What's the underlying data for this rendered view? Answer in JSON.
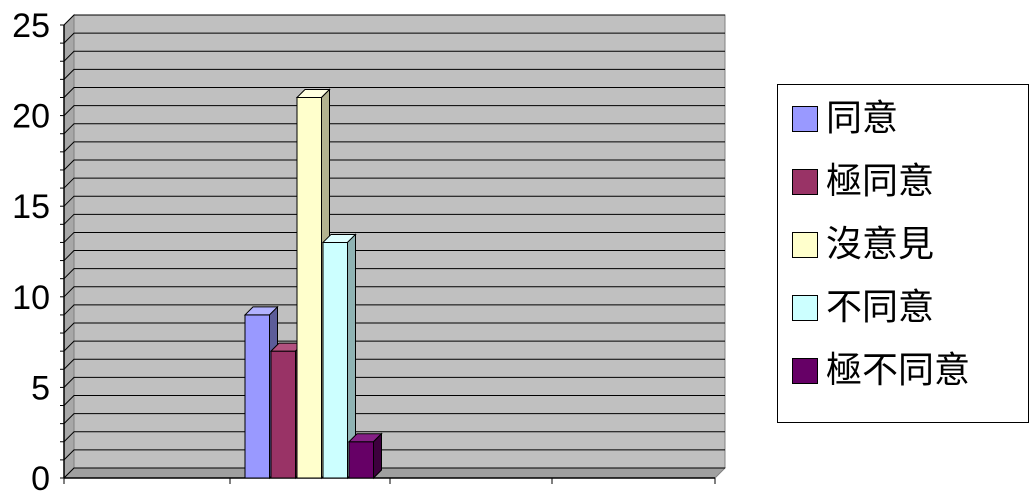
{
  "chart_data": {
    "type": "bar",
    "categories": [
      ""
    ],
    "series": [
      {
        "name": "同意",
        "values": [
          9
        ],
        "color": "#9999ff",
        "top_color": "#b3b3ff",
        "side_color": "#5c5c99"
      },
      {
        "name": "極同意",
        "values": [
          7
        ],
        "color": "#993366",
        "top_color": "#b3527f",
        "side_color": "#5c1f3d"
      },
      {
        "name": "沒意見",
        "values": [
          21
        ],
        "color": "#ffffcc",
        "top_color": "#ffffe0",
        "side_color": "#b3b38f"
      },
      {
        "name": "不同意",
        "values": [
          13
        ],
        "color": "#ccffff",
        "top_color": "#e0ffff",
        "side_color": "#8fb3b3"
      },
      {
        "name": "極不同意",
        "values": [
          2
        ],
        "color": "#660066",
        "top_color": "#852085",
        "side_color": "#3d003d"
      }
    ],
    "ylim": [
      0,
      25
    ],
    "y_ticks": [
      "0",
      "5",
      "10",
      "15",
      "20",
      "25"
    ],
    "minor_gridlines": true,
    "legend_position": "right",
    "plot_background": "#c0c0c0",
    "title": "",
    "xlabel": "",
    "ylabel": ""
  }
}
